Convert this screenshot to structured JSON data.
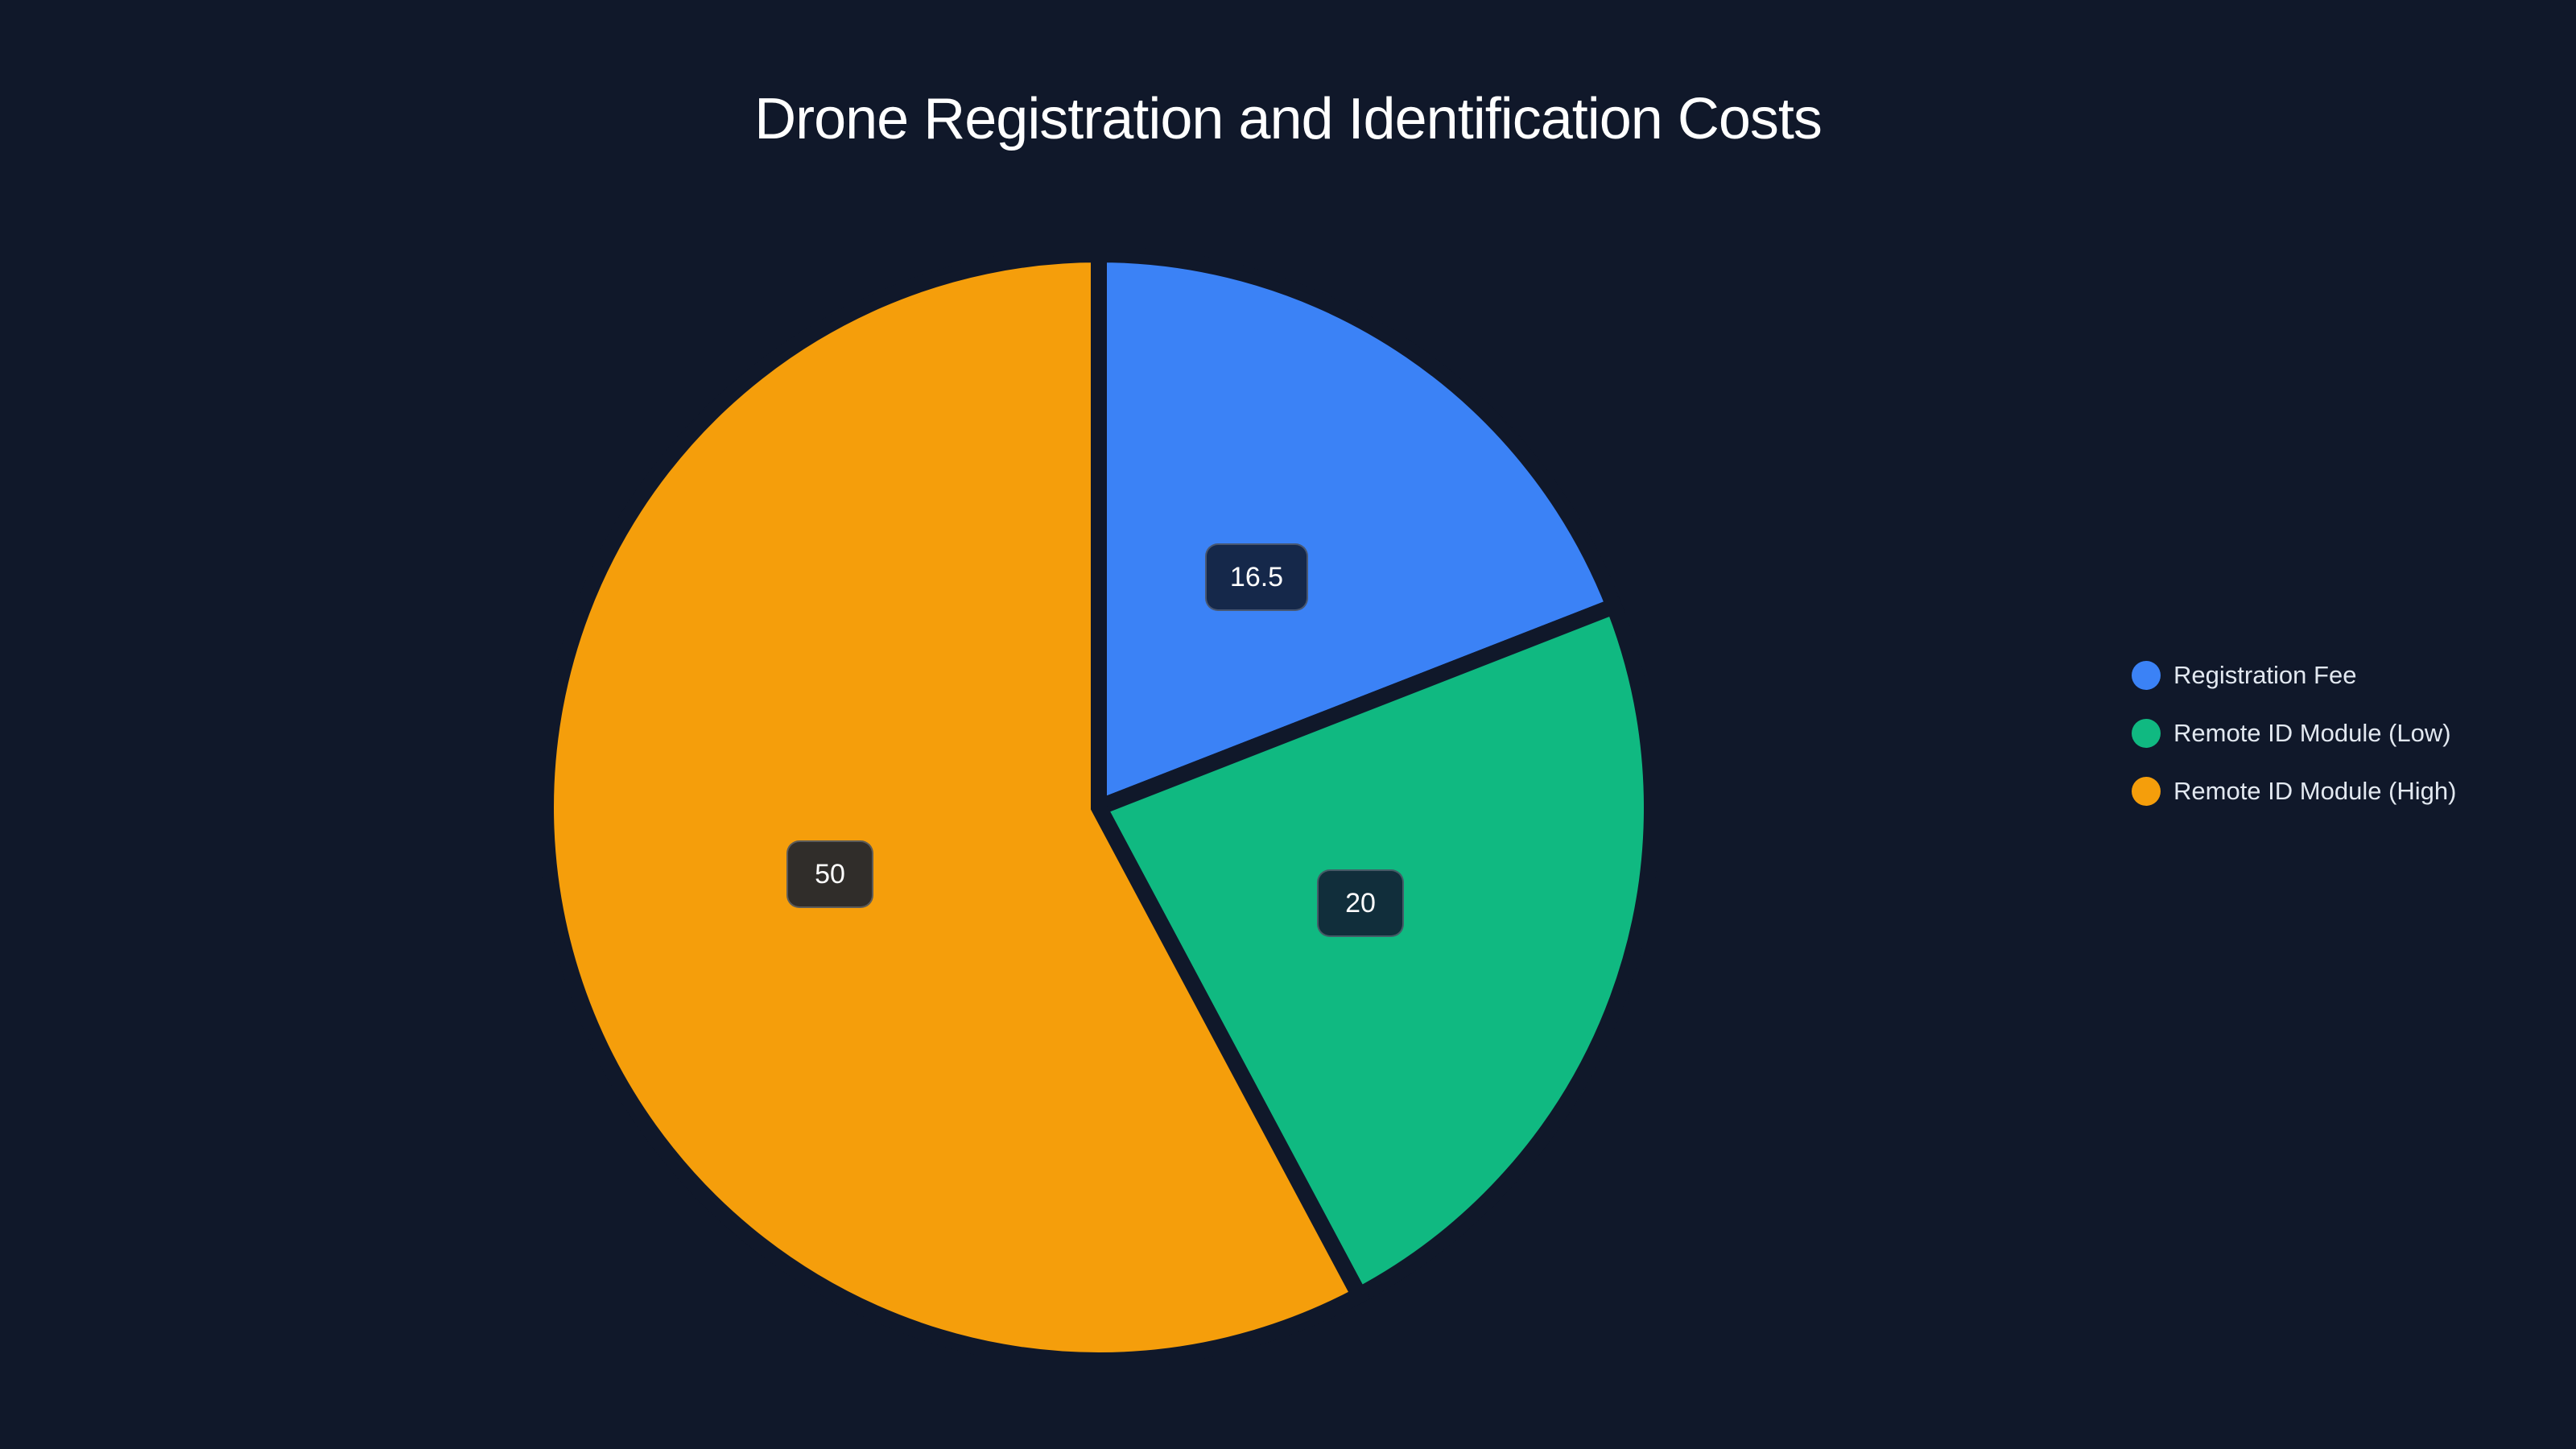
{
  "chart_data": {
    "type": "pie",
    "title": "Drone Registration and Identification Costs",
    "categories": [
      "Registration Fee",
      "Remote ID Module (Low)",
      "Remote ID Module (High)"
    ],
    "values": [
      16.5,
      20,
      50
    ],
    "colors": [
      "#3b82f6",
      "#10b981",
      "#f59e0b"
    ],
    "data_labels": [
      "16.5",
      "20",
      "50"
    ],
    "legend_position": "right",
    "start_angle": "12 o'clock, clockwise"
  },
  "title": "Drone Registration and Identification Costs",
  "legend": {
    "items": [
      {
        "label": "Registration Fee",
        "color": "#3b82f6"
      },
      {
        "label": "Remote ID Module (Low)",
        "color": "#10b981"
      },
      {
        "label": "Remote ID Module (High)",
        "color": "#f59e0b"
      }
    ]
  },
  "labels": {
    "registration_fee": {
      "text": "16.5",
      "bg": "#15284a"
    },
    "remote_id_low": {
      "text": "20",
      "bg": "#112e3b"
    },
    "remote_id_high": {
      "text": "50",
      "bg": "#302d2a"
    }
  },
  "theme": {
    "background": "#10182a",
    "separator": "#10182a"
  }
}
